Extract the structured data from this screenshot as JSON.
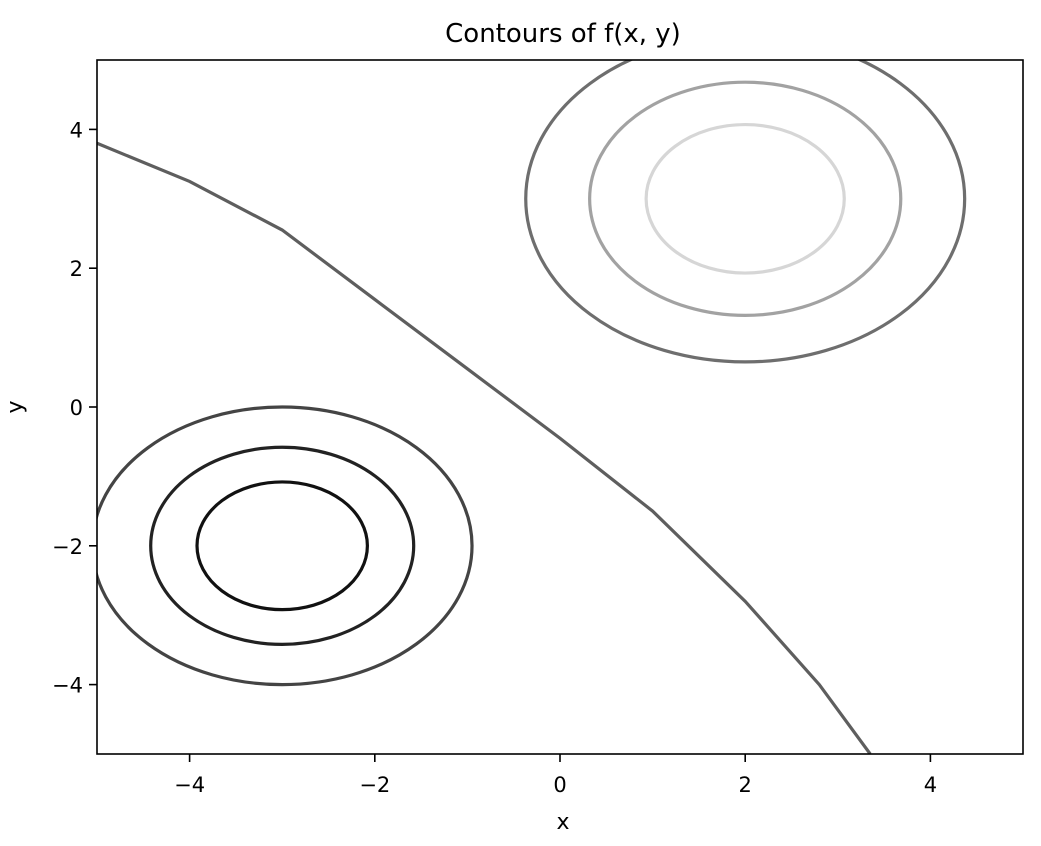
{
  "chart_data": {
    "type": "contour",
    "title": "Contours of f(x, y)",
    "xlabel": "x",
    "ylabel": "y",
    "xlim": [
      -5,
      5
    ],
    "ylim": [
      -5,
      5
    ],
    "xticks": [
      -4,
      -2,
      0,
      2,
      4
    ],
    "yticks": [
      -4,
      -2,
      0,
      2,
      4
    ],
    "xtick_labels": [
      "−4",
      "−2",
      "0",
      "2",
      "4"
    ],
    "ytick_labels": [
      "−4",
      "−2",
      "0",
      "2",
      "4"
    ],
    "grid": false,
    "contours": [
      {
        "kind": "ellipse",
        "center": [
          -3,
          -2
        ],
        "rx": 2.05,
        "ry": 2.0,
        "color": "#444444"
      },
      {
        "kind": "ellipse",
        "center": [
          -3,
          -2
        ],
        "rx": 1.42,
        "ry": 1.42,
        "color": "#222222"
      },
      {
        "kind": "ellipse",
        "center": [
          -3,
          -2
        ],
        "rx": 0.92,
        "ry": 0.92,
        "color": "#111111"
      },
      {
        "kind": "ellipse",
        "center": [
          2,
          3
        ],
        "rx": 2.37,
        "ry": 2.35,
        "color": "#6e6e6e"
      },
      {
        "kind": "ellipse",
        "center": [
          2,
          3
        ],
        "rx": 1.68,
        "ry": 1.68,
        "color": "#a2a2a2"
      },
      {
        "kind": "ellipse",
        "center": [
          2,
          3
        ],
        "rx": 1.07,
        "ry": 1.07,
        "color": "#d6d6d6"
      },
      {
        "kind": "curve",
        "color": "#5e5e5e",
        "points": [
          [
            -5,
            3.8
          ],
          [
            -4,
            3.25
          ],
          [
            -3,
            2.55
          ],
          [
            -2,
            1.55
          ],
          [
            -1,
            0.55
          ],
          [
            0,
            -0.45
          ],
          [
            1,
            -1.5
          ],
          [
            2,
            -2.8
          ],
          [
            2.8,
            -4.0
          ],
          [
            3.35,
            -5.0
          ]
        ]
      }
    ]
  }
}
